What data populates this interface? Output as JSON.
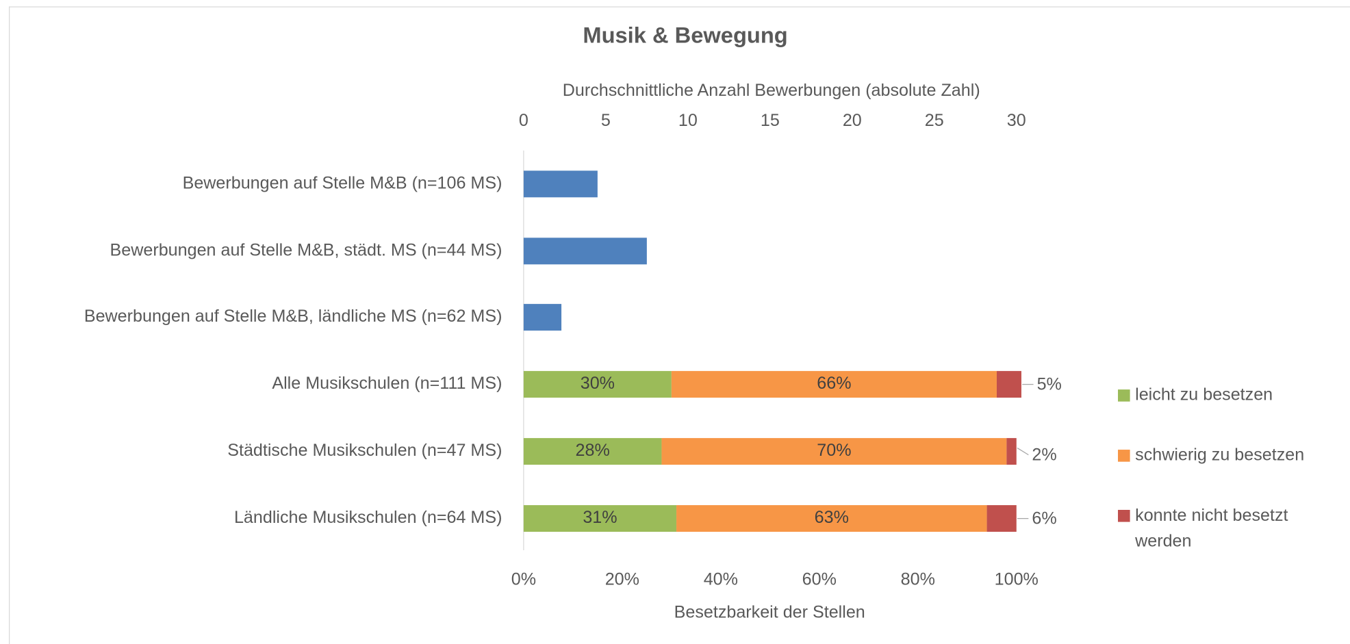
{
  "chart_data": [
    {
      "type": "bar",
      "orientation": "horizontal",
      "title": "Musik & Bewegung",
      "xlabel": "Durchschnittliche Anzahl Bewerbungen (absolute Zahl)",
      "categories": [
        "Bewerbungen auf Stelle M&B (n=106 MS)",
        "Bewerbungen auf Stelle M&B, städt. MS (n=44 MS)",
        "Bewerbungen auf Stelle M&B, ländliche MS (n=62 MS)"
      ],
      "values": [
        4.5,
        7.5,
        2.3
      ],
      "color": "#4f81bd",
      "xlim": [
        0,
        30
      ],
      "xticks": [
        0,
        5,
        10,
        15,
        20,
        25,
        30
      ]
    },
    {
      "type": "stacked_bar",
      "orientation": "horizontal",
      "xlabel": "Besetzbarkeit der Stellen",
      "categories": [
        "Alle Musikschulen (n=111 MS)",
        "Städtische Musikschulen (n=47 MS)",
        "Ländliche Musikschulen (n=64 MS)"
      ],
      "series": [
        {
          "name": "leicht zu besetzen",
          "color": "#9bbb59",
          "values": [
            30,
            28,
            31
          ],
          "value_labels": [
            "30%",
            "28%",
            "31%"
          ]
        },
        {
          "name": "schwierig zu besetzen",
          "color": "#f79646",
          "values": [
            66,
            70,
            63
          ],
          "value_labels": [
            "66%",
            "70%",
            "63%"
          ]
        },
        {
          "name": "konnte nicht besetzt werden",
          "color": "#c0504d",
          "values": [
            5,
            2,
            6
          ],
          "value_labels": [
            "5%",
            "2%",
            "6%"
          ]
        }
      ],
      "xlim": [
        0,
        100
      ],
      "xticks": [
        {
          "value": 0,
          "label": "0%"
        },
        {
          "value": 20,
          "label": "20%"
        },
        {
          "value": 40,
          "label": "40%"
        },
        {
          "value": 60,
          "label": "60%"
        },
        {
          "value": 80,
          "label": "80%"
        },
        {
          "value": 100,
          "label": "100%"
        }
      ],
      "legend": "right"
    }
  ]
}
